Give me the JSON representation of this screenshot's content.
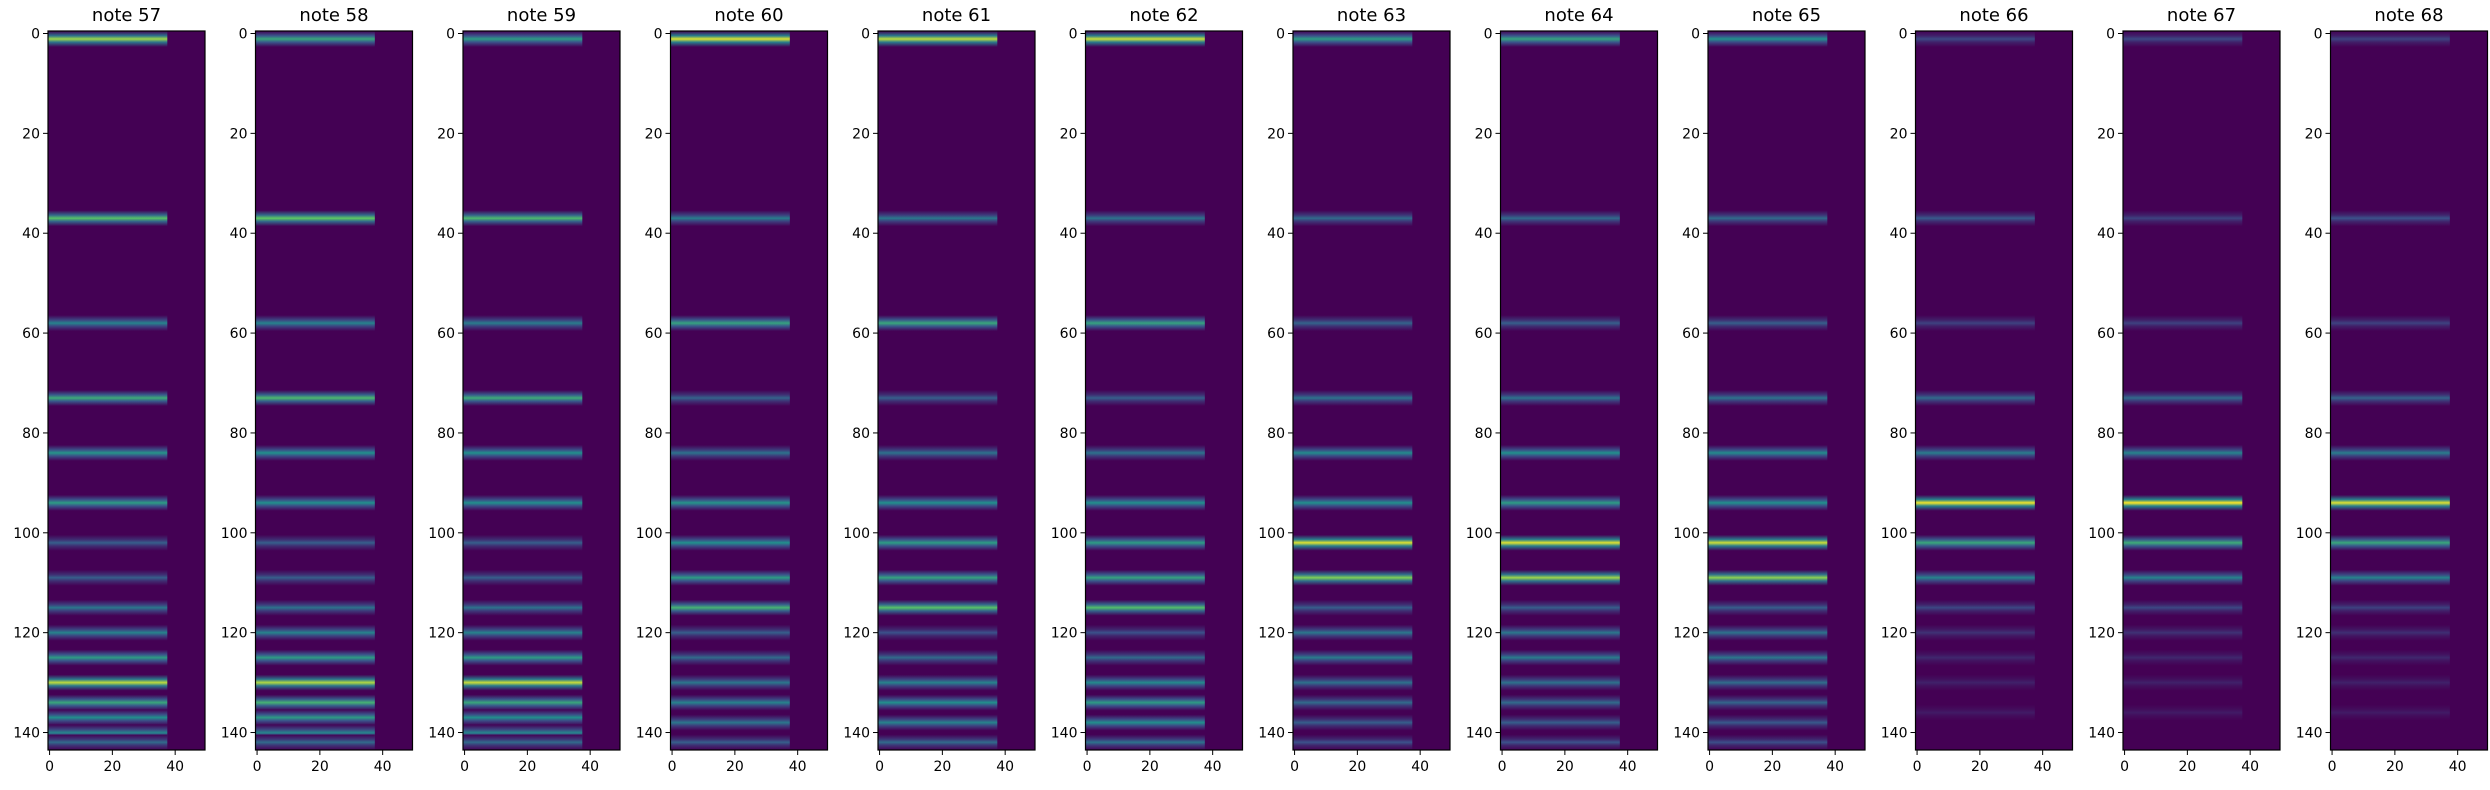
{
  "chart_data": {
    "type": "heatmap",
    "colormap": "viridis",
    "colors": {
      "low": "#440154",
      "mid": "#21918c",
      "high": "#fde725"
    },
    "rows": 144,
    "cols": 50,
    "xticks": [
      0,
      20,
      40
    ],
    "yticks": [
      0,
      20,
      40,
      60,
      80,
      100,
      120,
      140
    ],
    "xlim": [
      -0.5,
      49.5
    ],
    "ylim": [
      143.5,
      -0.5
    ],
    "panels": [
      {
        "title": "note 57",
        "col_range": [
          0,
          38
        ],
        "bands": [
          {
            "row": 0,
            "intensity": 0.85
          },
          {
            "row": 37,
            "intensity": 0.72
          },
          {
            "row": 58,
            "intensity": 0.45
          },
          {
            "row": 73,
            "intensity": 0.62
          },
          {
            "row": 84,
            "intensity": 0.52
          },
          {
            "row": 94,
            "intensity": 0.55
          },
          {
            "row": 102,
            "intensity": 0.3
          },
          {
            "row": 109,
            "intensity": 0.3
          },
          {
            "row": 115,
            "intensity": 0.4
          },
          {
            "row": 120,
            "intensity": 0.45
          },
          {
            "row": 125,
            "intensity": 0.55
          },
          {
            "row": 130,
            "intensity": 0.9
          },
          {
            "row": 134,
            "intensity": 0.6
          },
          {
            "row": 137,
            "intensity": 0.5
          },
          {
            "row": 140,
            "intensity": 0.45
          },
          {
            "row": 142,
            "intensity": 0.35
          }
        ]
      },
      {
        "title": "note 58",
        "col_range": [
          0,
          38
        ],
        "bands": [
          {
            "row": 0,
            "intensity": 0.6
          },
          {
            "row": 37,
            "intensity": 0.75
          },
          {
            "row": 58,
            "intensity": 0.45
          },
          {
            "row": 73,
            "intensity": 0.68
          },
          {
            "row": 84,
            "intensity": 0.5
          },
          {
            "row": 94,
            "intensity": 0.5
          },
          {
            "row": 102,
            "intensity": 0.3
          },
          {
            "row": 109,
            "intensity": 0.3
          },
          {
            "row": 115,
            "intensity": 0.38
          },
          {
            "row": 120,
            "intensity": 0.45
          },
          {
            "row": 125,
            "intensity": 0.55
          },
          {
            "row": 130,
            "intensity": 0.88
          },
          {
            "row": 134,
            "intensity": 0.65
          },
          {
            "row": 137,
            "intensity": 0.55
          },
          {
            "row": 140,
            "intensity": 0.45
          },
          {
            "row": 142,
            "intensity": 0.35
          }
        ]
      },
      {
        "title": "note 59",
        "col_range": [
          0,
          38
        ],
        "bands": [
          {
            "row": 0,
            "intensity": 0.55
          },
          {
            "row": 37,
            "intensity": 0.68
          },
          {
            "row": 58,
            "intensity": 0.42
          },
          {
            "row": 73,
            "intensity": 0.62
          },
          {
            "row": 84,
            "intensity": 0.5
          },
          {
            "row": 94,
            "intensity": 0.5
          },
          {
            "row": 102,
            "intensity": 0.3
          },
          {
            "row": 109,
            "intensity": 0.3
          },
          {
            "row": 115,
            "intensity": 0.38
          },
          {
            "row": 120,
            "intensity": 0.45
          },
          {
            "row": 125,
            "intensity": 0.55
          },
          {
            "row": 130,
            "intensity": 0.92
          },
          {
            "row": 134,
            "intensity": 0.6
          },
          {
            "row": 137,
            "intensity": 0.5
          },
          {
            "row": 140,
            "intensity": 0.45
          },
          {
            "row": 142,
            "intensity": 0.35
          }
        ]
      },
      {
        "title": "note 60",
        "col_range": [
          0,
          38
        ],
        "bands": [
          {
            "row": 0,
            "intensity": 0.95
          },
          {
            "row": 37,
            "intensity": 0.42
          },
          {
            "row": 58,
            "intensity": 0.58
          },
          {
            "row": 73,
            "intensity": 0.32
          },
          {
            "row": 84,
            "intensity": 0.38
          },
          {
            "row": 94,
            "intensity": 0.52
          },
          {
            "row": 102,
            "intensity": 0.5
          },
          {
            "row": 109,
            "intensity": 0.55
          },
          {
            "row": 115,
            "intensity": 0.65
          },
          {
            "row": 120,
            "intensity": 0.3
          },
          {
            "row": 125,
            "intensity": 0.35
          },
          {
            "row": 130,
            "intensity": 0.4
          },
          {
            "row": 134,
            "intensity": 0.45
          },
          {
            "row": 138,
            "intensity": 0.4
          },
          {
            "row": 142,
            "intensity": 0.3
          }
        ]
      },
      {
        "title": "note 61",
        "col_range": [
          0,
          38
        ],
        "bands": [
          {
            "row": 0,
            "intensity": 0.9
          },
          {
            "row": 37,
            "intensity": 0.4
          },
          {
            "row": 58,
            "intensity": 0.6
          },
          {
            "row": 73,
            "intensity": 0.3
          },
          {
            "row": 84,
            "intensity": 0.38
          },
          {
            "row": 94,
            "intensity": 0.5
          },
          {
            "row": 102,
            "intensity": 0.55
          },
          {
            "row": 109,
            "intensity": 0.58
          },
          {
            "row": 115,
            "intensity": 0.72
          },
          {
            "row": 120,
            "intensity": 0.25
          },
          {
            "row": 125,
            "intensity": 0.35
          },
          {
            "row": 130,
            "intensity": 0.45
          },
          {
            "row": 134,
            "intensity": 0.5
          },
          {
            "row": 138,
            "intensity": 0.45
          },
          {
            "row": 142,
            "intensity": 0.35
          }
        ]
      },
      {
        "title": "note 62",
        "col_range": [
          0,
          38
        ],
        "bands": [
          {
            "row": 0,
            "intensity": 0.92
          },
          {
            "row": 37,
            "intensity": 0.38
          },
          {
            "row": 58,
            "intensity": 0.58
          },
          {
            "row": 73,
            "intensity": 0.3
          },
          {
            "row": 84,
            "intensity": 0.38
          },
          {
            "row": 94,
            "intensity": 0.5
          },
          {
            "row": 102,
            "intensity": 0.55
          },
          {
            "row": 109,
            "intensity": 0.58
          },
          {
            "row": 115,
            "intensity": 0.7
          },
          {
            "row": 120,
            "intensity": 0.25
          },
          {
            "row": 125,
            "intensity": 0.35
          },
          {
            "row": 130,
            "intensity": 0.48
          },
          {
            "row": 134,
            "intensity": 0.55
          },
          {
            "row": 138,
            "intensity": 0.5
          },
          {
            "row": 142,
            "intensity": 0.38
          }
        ]
      },
      {
        "title": "note 63",
        "col_range": [
          0,
          38
        ],
        "bands": [
          {
            "row": 0,
            "intensity": 0.55
          },
          {
            "row": 37,
            "intensity": 0.35
          },
          {
            "row": 58,
            "intensity": 0.32
          },
          {
            "row": 73,
            "intensity": 0.38
          },
          {
            "row": 84,
            "intensity": 0.48
          },
          {
            "row": 94,
            "intensity": 0.5
          },
          {
            "row": 102,
            "intensity": 0.95
          },
          {
            "row": 109,
            "intensity": 0.8
          },
          {
            "row": 115,
            "intensity": 0.3
          },
          {
            "row": 120,
            "intensity": 0.4
          },
          {
            "row": 125,
            "intensity": 0.42
          },
          {
            "row": 130,
            "intensity": 0.38
          },
          {
            "row": 134,
            "intensity": 0.35
          },
          {
            "row": 138,
            "intensity": 0.3
          },
          {
            "row": 142,
            "intensity": 0.25
          }
        ]
      },
      {
        "title": "note 64",
        "col_range": [
          0,
          38
        ],
        "bands": [
          {
            "row": 0,
            "intensity": 0.58
          },
          {
            "row": 37,
            "intensity": 0.35
          },
          {
            "row": 58,
            "intensity": 0.3
          },
          {
            "row": 73,
            "intensity": 0.38
          },
          {
            "row": 84,
            "intensity": 0.5
          },
          {
            "row": 94,
            "intensity": 0.55
          },
          {
            "row": 102,
            "intensity": 0.95
          },
          {
            "row": 109,
            "intensity": 0.85
          },
          {
            "row": 115,
            "intensity": 0.3
          },
          {
            "row": 120,
            "intensity": 0.4
          },
          {
            "row": 125,
            "intensity": 0.42
          },
          {
            "row": 130,
            "intensity": 0.38
          },
          {
            "row": 134,
            "intensity": 0.35
          },
          {
            "row": 138,
            "intensity": 0.3
          },
          {
            "row": 142,
            "intensity": 0.25
          }
        ]
      },
      {
        "title": "note 65",
        "col_range": [
          0,
          38
        ],
        "bands": [
          {
            "row": 0,
            "intensity": 0.5
          },
          {
            "row": 37,
            "intensity": 0.35
          },
          {
            "row": 58,
            "intensity": 0.3
          },
          {
            "row": 73,
            "intensity": 0.38
          },
          {
            "row": 84,
            "intensity": 0.48
          },
          {
            "row": 94,
            "intensity": 0.5
          },
          {
            "row": 102,
            "intensity": 0.92
          },
          {
            "row": 109,
            "intensity": 0.82
          },
          {
            "row": 115,
            "intensity": 0.3
          },
          {
            "row": 120,
            "intensity": 0.38
          },
          {
            "row": 125,
            "intensity": 0.4
          },
          {
            "row": 130,
            "intensity": 0.36
          },
          {
            "row": 134,
            "intensity": 0.33
          },
          {
            "row": 138,
            "intensity": 0.28
          },
          {
            "row": 142,
            "intensity": 0.24
          }
        ]
      },
      {
        "title": "note 66",
        "col_range": [
          0,
          38
        ],
        "bands": [
          {
            "row": 0,
            "intensity": 0.22
          },
          {
            "row": 37,
            "intensity": 0.28
          },
          {
            "row": 58,
            "intensity": 0.2
          },
          {
            "row": 73,
            "intensity": 0.35
          },
          {
            "row": 84,
            "intensity": 0.42
          },
          {
            "row": 94,
            "intensity": 0.98
          },
          {
            "row": 102,
            "intensity": 0.6
          },
          {
            "row": 109,
            "intensity": 0.45
          },
          {
            "row": 115,
            "intensity": 0.22
          },
          {
            "row": 120,
            "intensity": 0.15
          },
          {
            "row": 125,
            "intensity": 0.12
          },
          {
            "row": 130,
            "intensity": 0.1
          },
          {
            "row": 136,
            "intensity": 0.08
          }
        ]
      },
      {
        "title": "note 67",
        "col_range": [
          0,
          38
        ],
        "bands": [
          {
            "row": 0,
            "intensity": 0.22
          },
          {
            "row": 37,
            "intensity": 0.2
          },
          {
            "row": 58,
            "intensity": 0.2
          },
          {
            "row": 73,
            "intensity": 0.35
          },
          {
            "row": 84,
            "intensity": 0.45
          },
          {
            "row": 94,
            "intensity": 1.0
          },
          {
            "row": 102,
            "intensity": 0.62
          },
          {
            "row": 109,
            "intensity": 0.45
          },
          {
            "row": 115,
            "intensity": 0.22
          },
          {
            "row": 120,
            "intensity": 0.15
          },
          {
            "row": 125,
            "intensity": 0.12
          },
          {
            "row": 130,
            "intensity": 0.1
          },
          {
            "row": 136,
            "intensity": 0.08
          }
        ]
      },
      {
        "title": "note 68",
        "col_range": [
          0,
          38
        ],
        "bands": [
          {
            "row": 0,
            "intensity": 0.2
          },
          {
            "row": 37,
            "intensity": 0.25
          },
          {
            "row": 58,
            "intensity": 0.2
          },
          {
            "row": 73,
            "intensity": 0.32
          },
          {
            "row": 84,
            "intensity": 0.42
          },
          {
            "row": 94,
            "intensity": 0.95
          },
          {
            "row": 102,
            "intensity": 0.6
          },
          {
            "row": 109,
            "intensity": 0.45
          },
          {
            "row": 115,
            "intensity": 0.2
          },
          {
            "row": 120,
            "intensity": 0.14
          },
          {
            "row": 125,
            "intensity": 0.12
          },
          {
            "row": 130,
            "intensity": 0.1
          },
          {
            "row": 136,
            "intensity": 0.08
          }
        ]
      }
    ]
  }
}
